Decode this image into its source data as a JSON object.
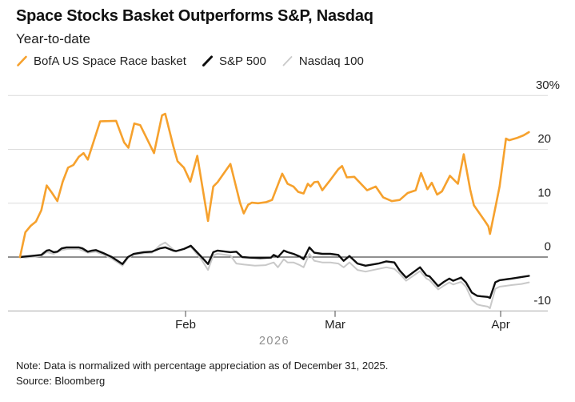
{
  "header": {
    "title": "Space Stocks Basket Outperforms S&P, Nasdaq",
    "subtitle": "Year-to-date"
  },
  "legend": [
    {
      "label": "BofA US Space Race basket",
      "color": "#F6A12D"
    },
    {
      "label": "S&P 500",
      "color": "#0E0E0E"
    },
    {
      "label": "Nasdaq 100",
      "color": "#C9C9C9"
    }
  ],
  "footer": {
    "note": "Note: Data is normalized with percentage appreciation as of December 31, 2025.",
    "source": "Source: Bloomberg"
  },
  "chart_data": {
    "type": "line",
    "title": "Space Stocks Basket Outperforms S&P, Nasdaq",
    "subtitle": "Year-to-date",
    "unit": "% change year-to-date",
    "x_axis": {
      "description": "day of year 2026, Jan 2 through Apr 7",
      "range": [
        1,
        97
      ],
      "ticks": [
        {
          "day": 32,
          "label": "Feb"
        },
        {
          "day": 60,
          "label": "Mar"
        },
        {
          "day": 91,
          "label": "Apr"
        }
      ],
      "year_label": "2026"
    },
    "y_axis": {
      "ticks": [
        30,
        20,
        10,
        0,
        -10
      ],
      "tick_labels": [
        "30%",
        "20",
        "10",
        "0",
        "-10"
      ],
      "range": [
        -11,
        31
      ],
      "zero_line": true,
      "grid": true,
      "labels_position": "right"
    },
    "series": [
      {
        "name": "BofA US Space Race basket",
        "color": "#F6A12D",
        "width": 2.6,
        "points": [
          [
            1,
            0
          ],
          [
            2,
            4.6
          ],
          [
            3,
            5.8
          ],
          [
            4,
            6.6
          ],
          [
            5,
            8.7
          ],
          [
            6,
            13.3
          ],
          [
            7,
            11.9
          ],
          [
            8,
            10.4
          ],
          [
            9,
            14.0
          ],
          [
            10,
            16.6
          ],
          [
            11,
            17.1
          ],
          [
            12,
            18.6
          ],
          [
            12.9,
            19.3
          ],
          [
            13.7,
            18.1
          ],
          [
            15,
            22.1
          ],
          [
            16,
            25.2
          ],
          [
            19,
            25.3
          ],
          [
            20.5,
            21.3
          ],
          [
            21.3,
            20.3
          ],
          [
            22.4,
            24.8
          ],
          [
            23.5,
            24.5
          ],
          [
            25,
            21.5
          ],
          [
            26.1,
            19.3
          ],
          [
            27.6,
            26.3
          ],
          [
            28.2,
            26.6
          ],
          [
            29.7,
            20.6
          ],
          [
            30.5,
            17.8
          ],
          [
            31.7,
            16.6
          ],
          [
            32.9,
            14.0
          ],
          [
            34.2,
            18.8
          ],
          [
            36.2,
            6.7
          ],
          [
            37.2,
            13.1
          ],
          [
            38,
            13.9
          ],
          [
            40.4,
            17.3
          ],
          [
            42.2,
            10.1
          ],
          [
            42.9,
            8.1
          ],
          [
            43.7,
            9.7
          ],
          [
            44.4,
            10.1
          ],
          [
            45.6,
            10.0
          ],
          [
            47.1,
            10.2
          ],
          [
            48.2,
            10.6
          ],
          [
            50.1,
            15.5
          ],
          [
            51.1,
            13.6
          ],
          [
            52.2,
            13.1
          ],
          [
            53.1,
            12.1
          ],
          [
            54.1,
            11.8
          ],
          [
            54.9,
            13.6
          ],
          [
            55.4,
            13.1
          ],
          [
            56.1,
            13.9
          ],
          [
            56.8,
            14.0
          ],
          [
            57.6,
            12.4
          ],
          [
            59.1,
            14.3
          ],
          [
            60.6,
            16.3
          ],
          [
            61.3,
            16.9
          ],
          [
            62.2,
            14.8
          ],
          [
            63.6,
            14.9
          ],
          [
            66,
            12.4
          ],
          [
            67.6,
            13.1
          ],
          [
            69,
            11.1
          ],
          [
            70.6,
            10.4
          ],
          [
            72.1,
            10.6
          ],
          [
            73.6,
            11.9
          ],
          [
            75.1,
            12.4
          ],
          [
            76.1,
            15.6
          ],
          [
            77.3,
            12.6
          ],
          [
            78.1,
            13.8
          ],
          [
            79.1,
            11.6
          ],
          [
            80,
            12.2
          ],
          [
            81.5,
            15.1
          ],
          [
            83,
            13.6
          ],
          [
            84.1,
            19.1
          ],
          [
            85.3,
            12.5
          ],
          [
            86,
            9.6
          ],
          [
            87.4,
            7.6
          ],
          [
            88.1,
            6.6
          ],
          [
            88.7,
            5.7
          ],
          [
            89,
            4.3
          ],
          [
            90,
            9.1
          ],
          [
            90.8,
            13.1
          ],
          [
            92,
            22.0
          ],
          [
            92.6,
            21.7
          ],
          [
            94,
            22.1
          ],
          [
            95.3,
            22.6
          ],
          [
            96.3,
            23.2
          ]
        ]
      },
      {
        "name": "S&P 500",
        "color": "#0E0E0E",
        "width": 2.4,
        "points": [
          [
            1,
            0
          ],
          [
            2,
            0.1
          ],
          [
            3,
            0.2
          ],
          [
            5,
            0.4
          ],
          [
            6,
            1.2
          ],
          [
            6.5,
            1.3
          ],
          [
            7.3,
            0.9
          ],
          [
            8,
            1.0
          ],
          [
            8.8,
            1.6
          ],
          [
            9.7,
            1.8
          ],
          [
            12,
            1.8
          ],
          [
            12.7,
            1.6
          ],
          [
            13.7,
            1.0
          ],
          [
            14.5,
            1.2
          ],
          [
            15.2,
            1.3
          ],
          [
            16.7,
            0.7
          ],
          [
            18.2,
            0.0
          ],
          [
            20.2,
            -1.3
          ],
          [
            21.2,
            0.0
          ],
          [
            22.3,
            0.6
          ],
          [
            24.2,
            0.9
          ],
          [
            25.7,
            1.0
          ],
          [
            27.2,
            1.6
          ],
          [
            28.2,
            1.8
          ],
          [
            29.7,
            1.2
          ],
          [
            30.2,
            1.1
          ],
          [
            31.7,
            1.5
          ],
          [
            33,
            2.1
          ],
          [
            35,
            0.0
          ],
          [
            36.2,
            -1.3
          ],
          [
            37.2,
            0.9
          ],
          [
            38,
            1.2
          ],
          [
            40.4,
            0.9
          ],
          [
            41.5,
            1.0
          ],
          [
            42.6,
            0.0
          ],
          [
            44,
            -0.1
          ],
          [
            46,
            -0.2
          ],
          [
            48,
            -0.1
          ],
          [
            48.5,
            0.4
          ],
          [
            49.3,
            0.0
          ],
          [
            50.4,
            1.2
          ],
          [
            51.1,
            0.9
          ],
          [
            52.2,
            0.6
          ],
          [
            53.4,
            0.1
          ],
          [
            54.1,
            -0.4
          ],
          [
            55.2,
            1.8
          ],
          [
            56.1,
            0.8
          ],
          [
            57.6,
            0.6
          ],
          [
            59.1,
            0.6
          ],
          [
            60.6,
            0.4
          ],
          [
            61.6,
            -0.7
          ],
          [
            62.7,
            0.2
          ],
          [
            64.2,
            -1.2
          ],
          [
            65.7,
            -1.6
          ],
          [
            68.1,
            -1.2
          ],
          [
            69.6,
            -0.8
          ],
          [
            71.1,
            -1.0
          ],
          [
            72.1,
            -2.5
          ],
          [
            73.3,
            -3.8
          ],
          [
            75.9,
            -1.9
          ],
          [
            77.1,
            -3.4
          ],
          [
            77.7,
            -3.6
          ],
          [
            79.3,
            -5.4
          ],
          [
            80.4,
            -4.6
          ],
          [
            81.4,
            -4.0
          ],
          [
            82.1,
            -4.4
          ],
          [
            83.6,
            -3.8
          ],
          [
            84.5,
            -4.7
          ],
          [
            85.6,
            -6.6
          ],
          [
            86.6,
            -7.2
          ],
          [
            87.4,
            -7.3
          ],
          [
            88.6,
            -7.4
          ],
          [
            89,
            -7.6
          ],
          [
            90,
            -4.7
          ],
          [
            90.8,
            -4.3
          ],
          [
            93,
            -4.0
          ],
          [
            94.9,
            -3.7
          ],
          [
            96.3,
            -3.5
          ]
        ]
      },
      {
        "name": "Nasdaq 100",
        "color": "#C9C9C9",
        "width": 2,
        "points": [
          [
            1,
            0
          ],
          [
            2,
            -0.1
          ],
          [
            3,
            0.0
          ],
          [
            5,
            0.2
          ],
          [
            6,
            0.9
          ],
          [
            7.3,
            0.6
          ],
          [
            8.8,
            1.3
          ],
          [
            10,
            1.5
          ],
          [
            12,
            1.5
          ],
          [
            13.7,
            0.8
          ],
          [
            15.2,
            1.0
          ],
          [
            16.7,
            0.4
          ],
          [
            18.2,
            -0.3
          ],
          [
            20.2,
            -1.6
          ],
          [
            21.2,
            -0.2
          ],
          [
            22.3,
            0.4
          ],
          [
            24.2,
            0.7
          ],
          [
            25.7,
            0.8
          ],
          [
            27.2,
            2.2
          ],
          [
            28.2,
            2.7
          ],
          [
            29.7,
            1.4
          ],
          [
            30.2,
            1.1
          ],
          [
            33,
            1.9
          ],
          [
            35,
            -0.5
          ],
          [
            36.2,
            -2.4
          ],
          [
            37.2,
            0.3
          ],
          [
            38,
            0.6
          ],
          [
            40.4,
            0.3
          ],
          [
            41.5,
            -1.2
          ],
          [
            43,
            -1.4
          ],
          [
            45,
            -1.6
          ],
          [
            47,
            -1.5
          ],
          [
            48.5,
            -1.0
          ],
          [
            49.3,
            -1.9
          ],
          [
            50.4,
            -0.4
          ],
          [
            51.1,
            -1.0
          ],
          [
            52.2,
            -1.0
          ],
          [
            53.4,
            -1.5
          ],
          [
            54.1,
            -1.9
          ],
          [
            55.2,
            0.6
          ],
          [
            56.1,
            -0.7
          ],
          [
            57.6,
            -1.0
          ],
          [
            59.1,
            -1.0
          ],
          [
            60.6,
            -1.2
          ],
          [
            61.6,
            -1.9
          ],
          [
            62.7,
            -1.0
          ],
          [
            64.2,
            -2.4
          ],
          [
            65.7,
            -2.7
          ],
          [
            68.1,
            -2.2
          ],
          [
            69.6,
            -1.9
          ],
          [
            71.1,
            -2.2
          ],
          [
            72.1,
            -3.1
          ],
          [
            73.3,
            -4.4
          ],
          [
            75.9,
            -2.6
          ],
          [
            77.1,
            -4.0
          ],
          [
            77.7,
            -4.3
          ],
          [
            79.3,
            -6.0
          ],
          [
            80.4,
            -5.3
          ],
          [
            81.4,
            -4.7
          ],
          [
            82.1,
            -5.1
          ],
          [
            83.6,
            -4.6
          ],
          [
            84.5,
            -5.5
          ],
          [
            85.6,
            -7.9
          ],
          [
            86.6,
            -8.8
          ],
          [
            87.4,
            -9.0
          ],
          [
            88.6,
            -9.2
          ],
          [
            89,
            -9.5
          ],
          [
            90,
            -5.9
          ],
          [
            90.8,
            -5.5
          ],
          [
            93,
            -5.2
          ],
          [
            94.9,
            -5.0
          ],
          [
            96.3,
            -4.7
          ]
        ]
      }
    ],
    "legend_position": "top"
  }
}
